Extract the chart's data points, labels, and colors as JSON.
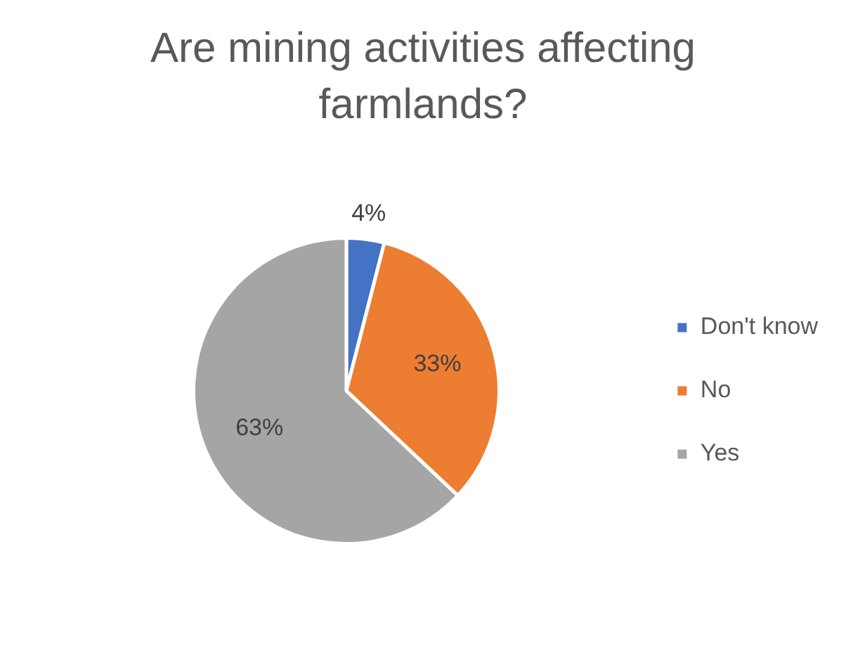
{
  "chart_data": {
    "type": "pie",
    "title": "Are mining activities affecting farmlands?",
    "categories": [
      "Don't know",
      "No",
      "Yes"
    ],
    "values": [
      4,
      33,
      63
    ],
    "colors": [
      "#4472c4",
      "#ed7d31",
      "#a5a5a5"
    ],
    "value_labels": [
      "4%",
      "33%",
      "63%"
    ],
    "legend": "right"
  }
}
